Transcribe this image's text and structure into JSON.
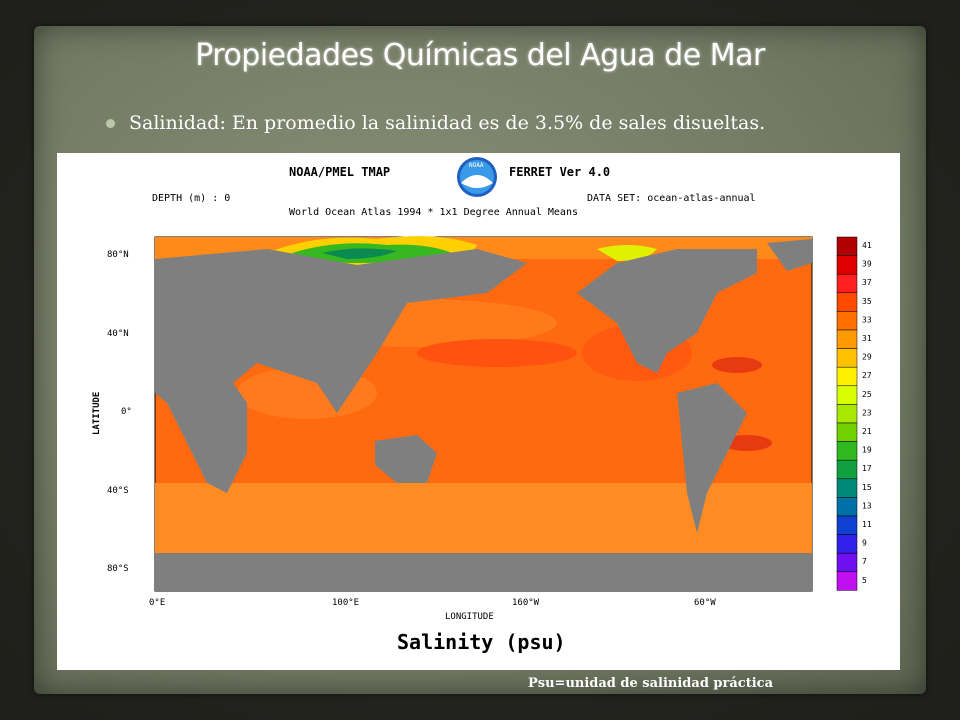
{
  "slide": {
    "title": "Propiedades Químicas del Agua de Mar",
    "bullet": "Salinidad: En promedio la salinidad es de 3.5% de sales disueltas.",
    "footnote": "Psu=unidad de salinidad práctica"
  },
  "figure": {
    "header_left": "NOAA/PMEL TMAP",
    "header_right": "FERRET Ver 4.0",
    "logo_text": "NOAA",
    "depth_label": "DEPTH (m) : 0",
    "dataset_label": "DATA SET: ocean-atlas-annual",
    "subtitle": "World Ocean Atlas 1994 * 1x1 Degree Annual Means",
    "ylabel": "LATITUDE",
    "xlabel": "LONGITUDE",
    "caption": "Salinity (psu)",
    "lat_ticks": [
      "80°N",
      "40°N",
      "0°",
      "40°S",
      "80°S"
    ],
    "lon_ticks": [
      "0°E",
      "100°E",
      "160°W",
      "60°W"
    ],
    "colorbar_labels": [
      "41",
      "39",
      "37",
      "35",
      "33",
      "31",
      "29",
      "27",
      "25",
      "23",
      "21",
      "19",
      "17",
      "15",
      "13",
      "11",
      "9",
      "7",
      "5"
    ],
    "colorbar_colors": [
      "#b00000",
      "#e00000",
      "#ff2020",
      "#ff4a00",
      "#ff7000",
      "#ff9a00",
      "#ffc000",
      "#fff000",
      "#d8ff00",
      "#a8e800",
      "#70d000",
      "#30b820",
      "#10a040",
      "#008878",
      "#0070a8",
      "#1040d0",
      "#3020e8",
      "#7010f0",
      "#c010f0"
    ]
  }
}
